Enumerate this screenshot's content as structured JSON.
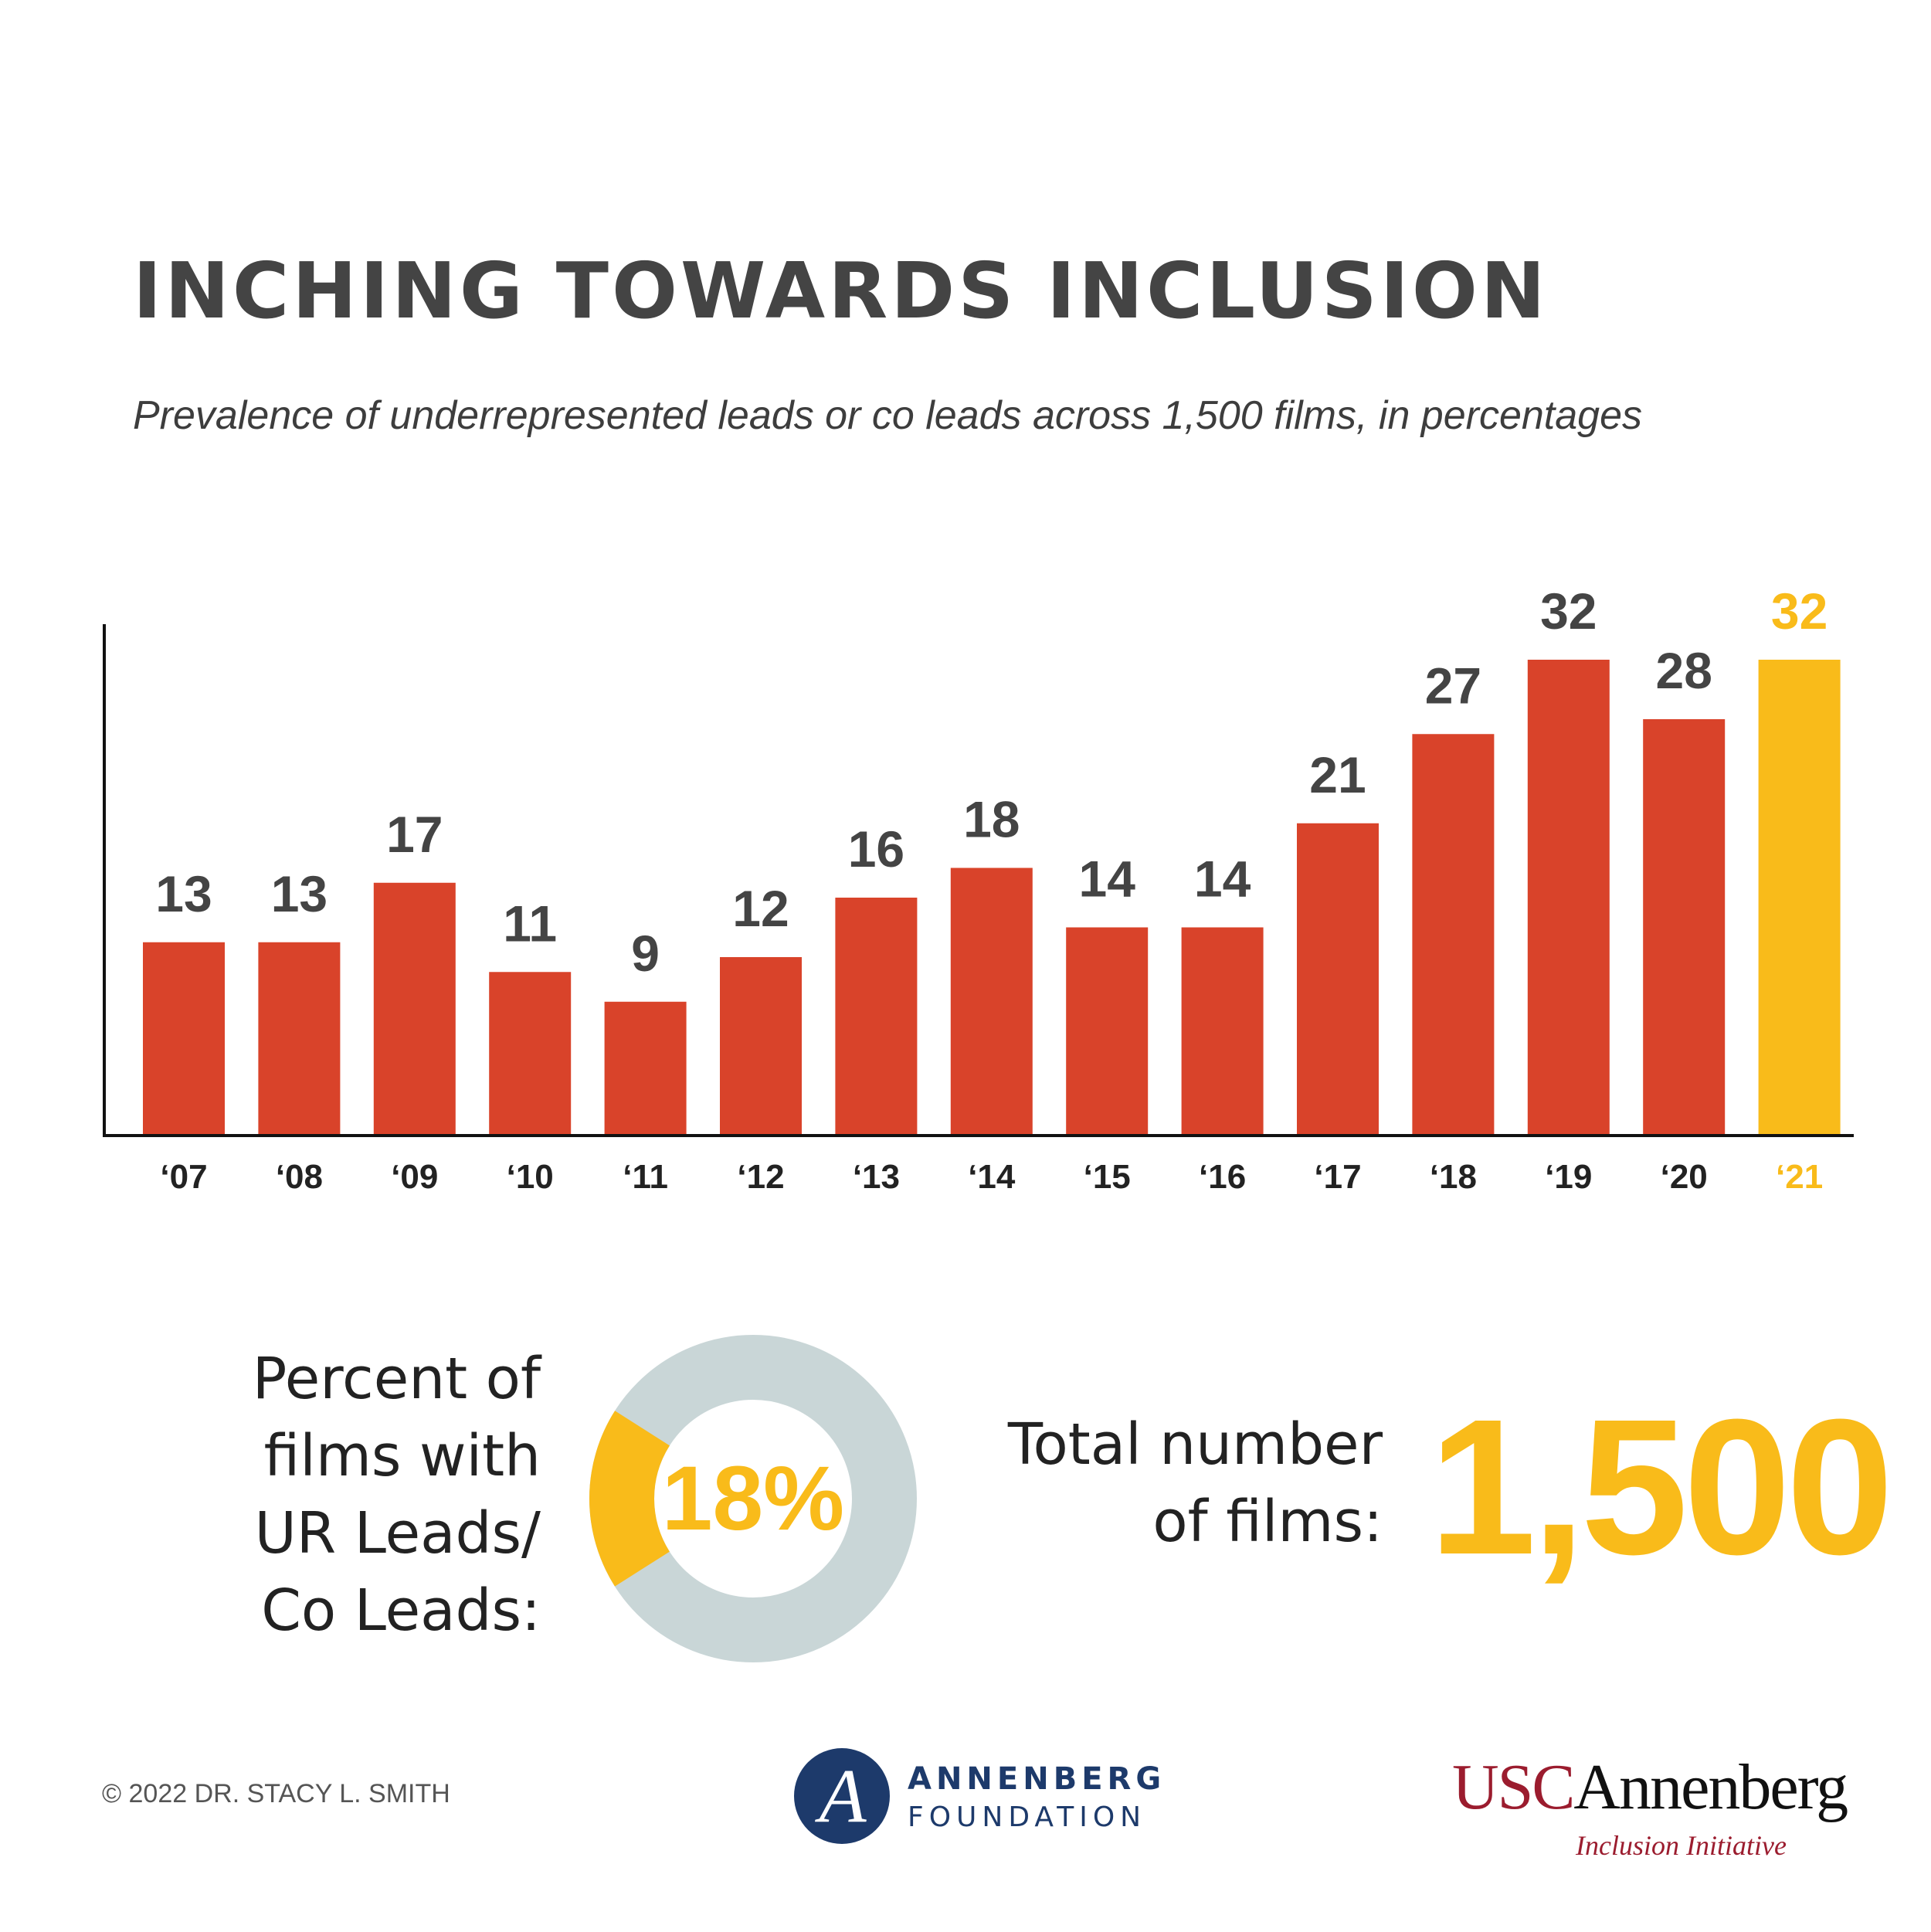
{
  "title": "INCHING TOWARDS INCLUSION",
  "subtitle": "Prevalence of underrepresented leads or co leads across 1,500 films, in percentages",
  "colors": {
    "bar": "#d9432a",
    "highlight": "#f9bb1a",
    "value_text": "#444444",
    "axis": "#111111",
    "tick_text": "#222222",
    "donut_track": "#c9d6d7",
    "usc_red": "#9b1c2e",
    "annenberg_blue": "#1d3a6b"
  },
  "chart_data": {
    "type": "bar",
    "title": "INCHING TOWARDS INCLUSION",
    "subtitle": "Prevalence of underrepresented leads or co leads across 1,500 films, in percentages",
    "categories": [
      "‘07",
      "‘08",
      "‘09",
      "‘10",
      "‘11",
      "‘12",
      "‘13",
      "‘14",
      "‘15",
      "‘16",
      "‘17",
      "‘18",
      "‘19",
      "‘20",
      "‘21"
    ],
    "values": [
      13,
      13,
      17,
      11,
      9,
      12,
      16,
      18,
      14,
      14,
      21,
      27,
      32,
      28,
      32
    ],
    "highlight_category": "‘21",
    "xlabel": "",
    "ylabel": "",
    "ylim": [
      0,
      34
    ],
    "grid": false
  },
  "stats": {
    "ur_label_lines": [
      "Percent of",
      "films with",
      "UR Leads/",
      "Co Leads:"
    ],
    "ur_percent_label": "18%",
    "ur_fraction": 0.18,
    "total_label_lines": [
      "Total number",
      "of films:"
    ],
    "total_films": "1,500"
  },
  "footer": {
    "copyright": "© 2022 DR. STACY L. SMITH",
    "annenberg_foundation": {
      "mark": "A",
      "line1": "ANNENBERG",
      "line2": "FOUNDATION"
    },
    "usc_annenberg": {
      "usc": "USC",
      "name": "Annenberg",
      "subtitle": "Inclusion Initiative"
    }
  }
}
